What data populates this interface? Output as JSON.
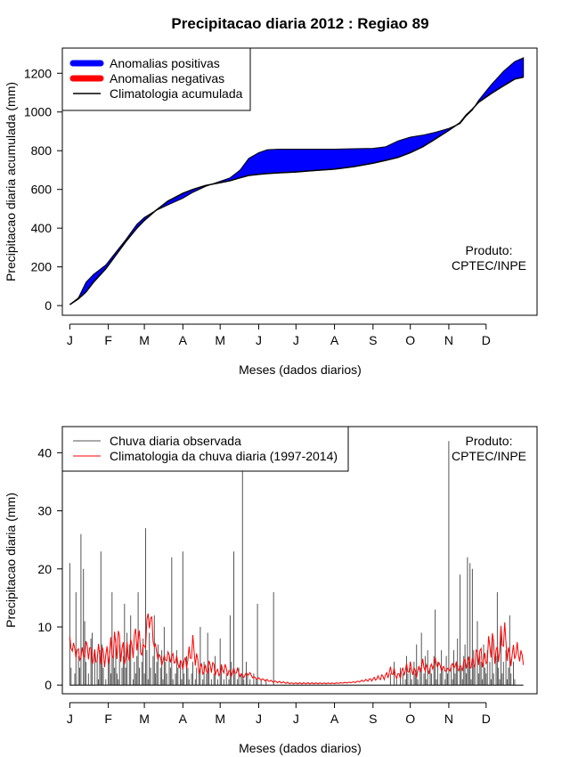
{
  "chart_data": [
    {
      "type": "area",
      "title": "Precipitacao diaria 2012 : Regiao 89",
      "xlabel": "Meses (dados diarios)",
      "ylabel": "Precipitacao diaria acumulada (mm)",
      "xlim": [
        -5,
        377
      ],
      "ylim": [
        -50,
        1330
      ],
      "yticks": [
        0,
        200,
        400,
        600,
        800,
        1000,
        1200
      ],
      "months": [
        "J",
        "F",
        "M",
        "A",
        "M",
        "J",
        "J",
        "A",
        "S",
        "O",
        "N",
        "D"
      ],
      "month_days": [
        1,
        32,
        61,
        92,
        122,
        153,
        183,
        214,
        245,
        275,
        306,
        336
      ],
      "legend": [
        {
          "label": "Anomalias positivas",
          "color": "#0000ff",
          "kind": "band"
        },
        {
          "label": "Anomalias negativas",
          "color": "#ff0000",
          "kind": "band"
        },
        {
          "label": "Climatologia acumulada",
          "color": "#000000",
          "kind": "line"
        }
      ],
      "note": [
        "Produto:",
        "CPTEC/INPE"
      ],
      "x": [
        1,
        8,
        14,
        20,
        30,
        38,
        46,
        55,
        61,
        70,
        80,
        92,
        100,
        110,
        122,
        130,
        138,
        145,
        153,
        160,
        170,
        183,
        195,
        214,
        230,
        245,
        255,
        265,
        275,
        285,
        295,
        306,
        315,
        320,
        325,
        330,
        340,
        350,
        359,
        366
      ],
      "observed": [
        5,
        40,
        120,
        160,
        210,
        275,
        340,
        420,
        455,
        490,
        520,
        555,
        585,
        615,
        642,
        660,
        700,
        760,
        790,
        805,
        808,
        808,
        808,
        808,
        810,
        812,
        820,
        850,
        870,
        880,
        895,
        915,
        940,
        980,
        1010,
        1060,
        1140,
        1210,
        1260,
        1280
      ],
      "climatology": [
        5,
        35,
        70,
        120,
        190,
        260,
        330,
        400,
        440,
        490,
        540,
        580,
        600,
        620,
        635,
        645,
        660,
        672,
        678,
        682,
        686,
        690,
        696,
        705,
        718,
        735,
        750,
        765,
        790,
        820,
        860,
        905,
        945,
        985,
        1015,
        1050,
        1095,
        1135,
        1170,
        1180
      ]
    },
    {
      "type": "bar",
      "xlabel": "Meses (dados diarios)",
      "ylabel": "Precipitacao diaria (mm)",
      "xlim": [
        -5,
        377
      ],
      "ylim": [
        -1.5,
        44.5
      ],
      "yticks": [
        0,
        10,
        20,
        30,
        40
      ],
      "months": [
        "J",
        "F",
        "M",
        "A",
        "M",
        "J",
        "J",
        "A",
        "S",
        "O",
        "N",
        "D"
      ],
      "month_days": [
        1,
        32,
        61,
        92,
        122,
        153,
        183,
        214,
        245,
        275,
        306,
        336
      ],
      "legend": [
        {
          "label": "Chuva diaria observada",
          "color": "#555555",
          "kind": "line"
        },
        {
          "label": "Climatologia da chuva diaria (1997-2014)",
          "color": "#ff0000",
          "kind": "line"
        }
      ],
      "note": [
        "Produto:",
        "CPTEC/INPE"
      ],
      "series": [
        {
          "name": "Chuva diaria observada",
          "color": "#555555",
          "values": [
            21,
            3,
            0,
            0,
            2,
            16,
            0,
            5,
            3,
            26,
            0,
            20,
            11,
            4,
            0,
            2,
            0,
            8,
            9,
            0,
            6,
            0,
            4,
            1,
            6,
            23,
            7,
            3,
            0,
            1,
            0,
            4,
            6,
            2,
            16,
            5,
            3,
            8,
            2,
            1,
            7,
            0,
            3,
            5,
            14,
            3,
            9,
            0,
            7,
            12,
            0,
            1,
            4,
            2,
            5,
            16,
            3,
            0,
            4,
            8,
            2,
            27,
            6,
            1,
            9,
            3,
            0,
            5,
            12,
            2,
            4,
            7,
            0,
            3,
            6,
            1,
            10,
            4,
            2,
            0,
            5,
            3,
            22,
            1,
            0,
            2,
            6,
            3,
            0,
            4,
            1,
            23,
            2,
            0,
            5,
            3,
            1,
            0,
            2,
            4,
            0,
            1,
            3,
            0,
            2,
            10,
            0,
            1,
            4,
            0,
            2,
            9,
            3,
            0,
            1,
            0,
            2,
            5,
            0,
            1,
            0,
            8,
            3,
            0,
            1,
            0,
            2,
            0,
            1,
            12,
            4,
            0,
            23,
            2,
            0,
            1,
            3,
            0,
            2,
            37,
            1,
            0,
            4,
            2,
            0,
            1,
            0,
            0,
            2,
            0,
            1,
            14,
            0,
            0,
            1,
            0,
            0,
            0,
            1,
            0,
            0,
            0,
            0,
            0,
            16,
            0,
            0,
            0,
            0,
            0,
            0,
            0,
            0,
            0,
            0,
            0,
            0,
            0,
            0,
            0,
            0,
            0,
            0,
            0,
            0,
            0,
            0,
            0,
            0,
            0,
            0,
            0,
            0,
            0,
            0,
            0,
            0,
            0,
            0,
            0,
            0,
            0,
            0,
            0,
            0,
            0,
            0,
            0,
            0,
            0,
            0,
            0,
            0,
            0,
            0,
            0,
            0,
            0,
            0,
            0,
            0,
            0,
            0,
            0,
            0,
            0,
            0,
            0,
            0,
            0,
            0,
            0,
            0,
            0,
            0,
            0,
            0,
            0,
            0,
            0,
            0,
            0,
            0,
            0,
            0,
            0,
            0,
            0,
            0,
            0,
            0,
            0,
            0,
            0,
            0,
            0,
            0,
            0,
            2,
            0,
            0,
            4,
            0,
            1,
            0,
            0,
            3,
            0,
            2,
            0,
            1,
            5,
            2,
            0,
            3,
            1,
            0,
            4,
            2,
            7,
            1,
            0,
            3,
            9,
            0,
            2,
            5,
            1,
            6,
            0,
            3,
            2,
            0,
            5,
            13,
            1,
            4,
            0,
            2,
            6,
            3,
            0,
            1,
            5,
            2,
            42,
            0,
            3,
            1,
            6,
            2,
            4,
            8,
            0,
            19,
            3,
            1,
            5,
            7,
            2,
            22,
            4,
            21,
            1,
            20,
            6,
            3,
            0,
            11,
            2,
            5,
            4,
            1,
            7,
            3,
            2,
            6,
            0,
            4,
            1,
            8,
            2,
            0,
            5,
            16,
            3,
            1,
            9,
            2,
            4,
            0,
            6,
            1,
            3,
            12,
            2,
            0,
            4,
            1
          ]
        },
        {
          "name": "Climatologia da chuva diaria (1997-2014)",
          "color": "#ff0000",
          "x": [
            1,
            5,
            10,
            15,
            20,
            25,
            30,
            35,
            40,
            45,
            50,
            55,
            60,
            65,
            70,
            75,
            80,
            85,
            90,
            95,
            100,
            105,
            110,
            115,
            120,
            125,
            130,
            135,
            140,
            145,
            150,
            155,
            160,
            165,
            170,
            175,
            180,
            190,
            200,
            214,
            230,
            245,
            255,
            260,
            265,
            270,
            275,
            280,
            285,
            290,
            295,
            300,
            305,
            310,
            315,
            320,
            325,
            330,
            335,
            340,
            345,
            350,
            355,
            360,
            366
          ],
          "values": [
            7.2,
            6.0,
            5.0,
            6.5,
            4.5,
            5.5,
            4.8,
            6.2,
            7.5,
            5.0,
            6.0,
            8.5,
            5.5,
            12.5,
            6.0,
            4.0,
            5.0,
            4.5,
            3.5,
            4.0,
            6.5,
            3.0,
            2.5,
            3.5,
            2.0,
            3.0,
            2.0,
            2.5,
            1.5,
            2.0,
            1.2,
            1.0,
            0.8,
            0.6,
            0.5,
            0.4,
            0.3,
            0.3,
            0.3,
            0.3,
            0.5,
            1.0,
            1.5,
            2.5,
            1.5,
            2.5,
            3.0,
            2.0,
            3.5,
            2.5,
            4.0,
            3.0,
            2.5,
            3.5,
            2.8,
            4.0,
            3.5,
            5.5,
            4.0,
            7.5,
            5.0,
            9.0,
            4.5,
            6.0,
            4.5
          ]
        }
      ]
    }
  ]
}
